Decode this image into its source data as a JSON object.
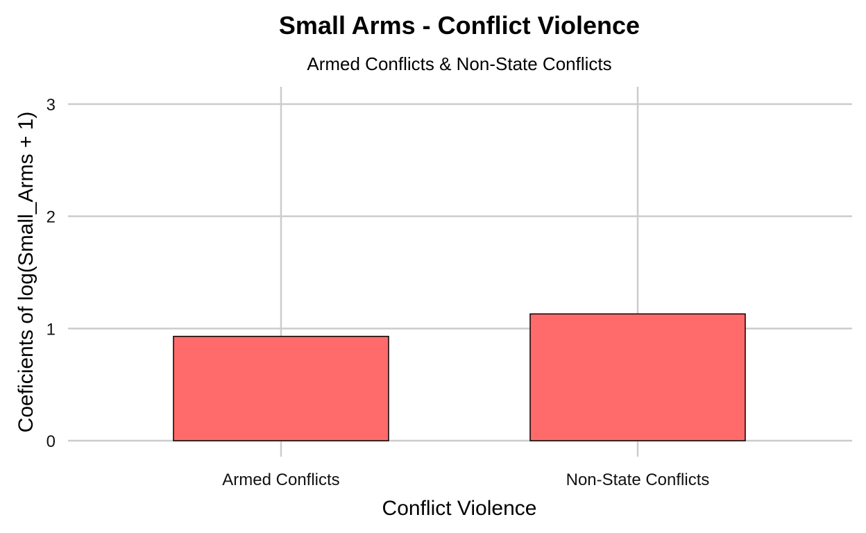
{
  "chart_data": {
    "type": "bar",
    "title": "Small Arms - Conflict Violence",
    "subtitle": "Armed Conflicts & Non-State Conflicts",
    "xlabel": "Conflict Violence",
    "ylabel": "Coeficients of log(Small_Arms + 1)",
    "categories": [
      "Armed Conflicts",
      "Non-State Conflicts"
    ],
    "values": [
      0.93,
      1.13
    ],
    "ylim": [
      0,
      3
    ],
    "yticks": [
      0,
      1,
      2,
      3
    ],
    "ytick_labels": [
      "0",
      "1",
      "2",
      "3"
    ],
    "grid": true,
    "legend": "none",
    "bar_color": "#FF6B6B",
    "bar_edge_color": "#000000",
    "grid_color": "#CCCCCC"
  }
}
